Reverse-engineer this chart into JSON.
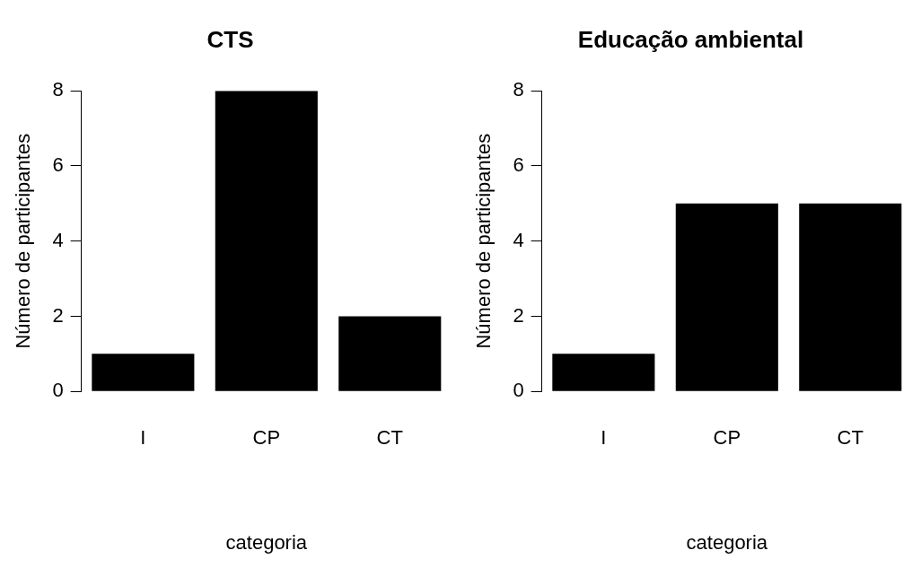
{
  "chart_data": [
    {
      "type": "bar",
      "title": "CTS",
      "xlabel": "categoria",
      "ylabel": "Número de participantes",
      "categories": [
        "I",
        "CP",
        "CT"
      ],
      "values": [
        1,
        8,
        2
      ],
      "color": "#000000",
      "ylim": [
        0,
        8
      ],
      "yticks": [
        0,
        2,
        4,
        6,
        8
      ],
      "grid": false,
      "legend": false
    },
    {
      "type": "bar",
      "title": "Educação ambiental",
      "xlabel": "categoria",
      "ylabel": "Número de participantes",
      "categories": [
        "I",
        "CP",
        "CT"
      ],
      "values": [
        1,
        5,
        5
      ],
      "color": "#000000",
      "ylim": [
        0,
        8
      ],
      "yticks": [
        0,
        2,
        4,
        6,
        8
      ],
      "grid": false,
      "legend": false
    }
  ]
}
